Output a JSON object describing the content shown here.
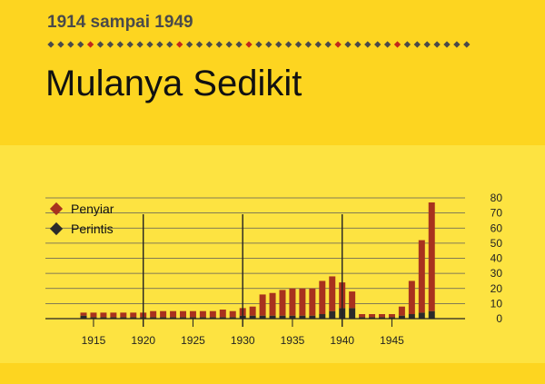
{
  "header": {
    "subtitle": "1914 sampai 1949",
    "title": "Mulanya Sedikit"
  },
  "colors": {
    "background": "#fde341",
    "band": "#fdd520",
    "penyiar": "#a8321e",
    "perintis": "#2b2b2b",
    "gridline": "#5a5a5a",
    "divider_red": "#c0281c",
    "divider_dark": "#4a4a4a"
  },
  "divider_accents": [
    4,
    13,
    20,
    29,
    35
  ],
  "chart_data": {
    "type": "bar",
    "stacked": true,
    "x": [
      1914,
      1915,
      1916,
      1917,
      1918,
      1919,
      1920,
      1921,
      1922,
      1923,
      1924,
      1925,
      1926,
      1927,
      1928,
      1929,
      1930,
      1931,
      1932,
      1933,
      1934,
      1935,
      1936,
      1937,
      1938,
      1939,
      1940,
      1941,
      1942,
      1943,
      1944,
      1945,
      1946,
      1947,
      1948,
      1949
    ],
    "series": [
      {
        "name": "Perintis",
        "values": [
          2,
          1,
          1,
          1,
          1,
          1,
          1,
          1,
          1,
          1,
          1,
          1,
          1,
          1,
          1,
          1,
          2,
          2,
          2,
          2,
          2,
          2,
          2,
          2,
          3,
          5,
          7,
          7,
          1,
          1,
          1,
          1,
          2,
          3,
          4,
          5
        ]
      },
      {
        "name": "Penyiar",
        "values": [
          2,
          3,
          3,
          3,
          3,
          3,
          3,
          4,
          4,
          4,
          4,
          4,
          4,
          4,
          5,
          4,
          5,
          6,
          14,
          15,
          17,
          18,
          18,
          18,
          22,
          23,
          17,
          11,
          2,
          2,
          2,
          2,
          6,
          22,
          48,
          72
        ]
      }
    ],
    "ylim": [
      0,
      80
    ],
    "yticks": [
      "0",
      "10",
      "20",
      "30",
      "40",
      "50",
      "60",
      "70",
      "80"
    ],
    "xticks": [
      "1915",
      "1920",
      "1925",
      "1930",
      "1935",
      "1940",
      "1945"
    ],
    "grid": true,
    "legend_position": "top-left",
    "legend": [
      "Penyiar",
      "Perintis"
    ]
  }
}
